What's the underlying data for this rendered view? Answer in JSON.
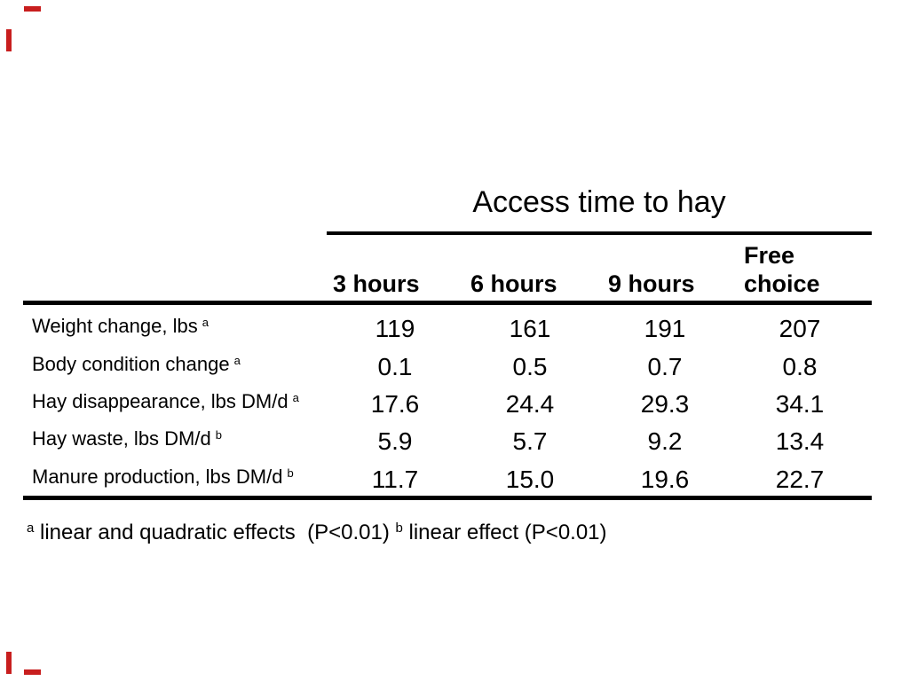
{
  "title": "Access time to hay",
  "table": {
    "columns": [
      "3 hours",
      "6 hours",
      "9 hours"
    ],
    "free_choice": {
      "line1": "Free",
      "line2": "choice"
    },
    "rows": [
      {
        "label": "Weight change, lbs",
        "sup": "a",
        "values": [
          "119",
          "161",
          "191",
          "207"
        ]
      },
      {
        "label": "Body condition change",
        "sup": "a",
        "values": [
          "0.1",
          "0.5",
          "0.7",
          "0.8"
        ]
      },
      {
        "label": "Hay disappearance, lbs DM/d",
        "sup": "a",
        "values": [
          "17.6",
          "24.4",
          "29.3",
          "34.1"
        ]
      },
      {
        "label": "Hay waste, lbs DM/d",
        "sup": "b",
        "values": [
          "5.9",
          "5.7",
          "9.2",
          "13.4"
        ]
      },
      {
        "label": "Manure production, lbs DM/d",
        "sup": "b",
        "values": [
          "11.7",
          "15.0",
          "19.6",
          "22.7"
        ]
      }
    ]
  },
  "footnote": {
    "sup_a": "a",
    "text_a": " linear and quadratic effects  (P<0.01) ",
    "sup_b": "b",
    "text_b": " linear effect (P<0.01)"
  },
  "colors": {
    "crop_mark": "#c81e1e",
    "text": "#000000",
    "rule": "#000000"
  }
}
